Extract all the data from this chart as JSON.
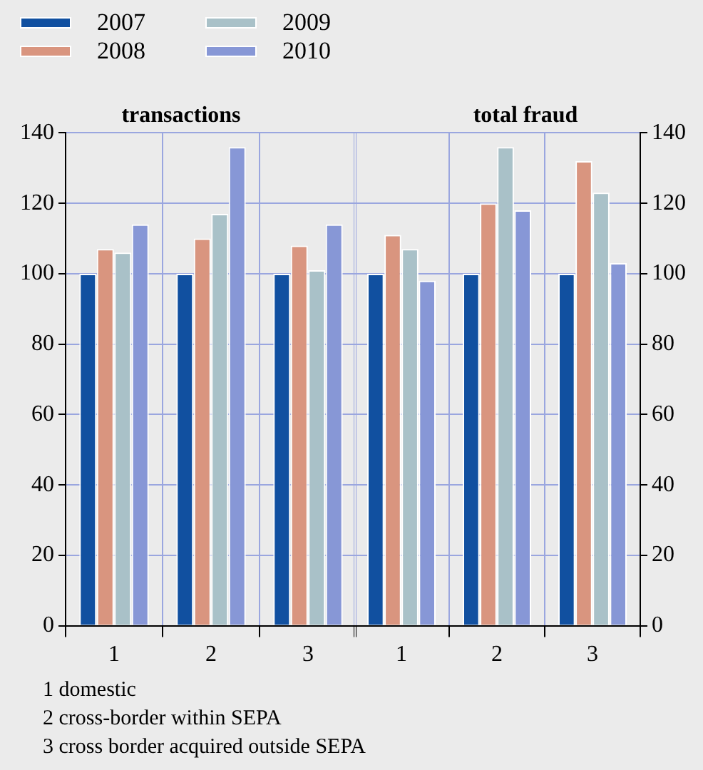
{
  "chart_data": [
    {
      "type": "bar",
      "title": "transactions",
      "categories": [
        "1",
        "2",
        "3"
      ],
      "series": [
        {
          "name": "2007",
          "color": "#1150a0",
          "values": [
            100,
            100,
            100
          ]
        },
        {
          "name": "2008",
          "color": "#d9957f",
          "values": [
            107,
            110,
            108
          ]
        },
        {
          "name": "2009",
          "color": "#a9c1c8",
          "values": [
            106,
            117,
            101
          ]
        },
        {
          "name": "2010",
          "color": "#8797d6",
          "values": [
            114,
            136,
            114
          ]
        }
      ],
      "ylim": [
        0,
        140
      ],
      "yticks": [
        0,
        20,
        40,
        60,
        80,
        100,
        120,
        140
      ],
      "grid": true,
      "legend": "top left"
    },
    {
      "type": "bar",
      "title": "total fraud",
      "categories": [
        "1",
        "2",
        "3"
      ],
      "series": [
        {
          "color": "#1150a0",
          "values": [
            100,
            100,
            100
          ]
        },
        {
          "color": "#d9957f",
          "values": [
            111,
            120,
            132
          ]
        },
        {
          "color": "#a9c1c8",
          "values": [
            107,
            136,
            123
          ]
        },
        {
          "color": "#8797d6",
          "values": [
            98,
            118,
            103
          ]
        }
      ],
      "ylim": [
        0,
        140
      ],
      "yticks": [
        0,
        20,
        40,
        60,
        80,
        100,
        120,
        140
      ],
      "grid": true,
      "annotations": [
        "1 domestic",
        "2 cross-border within SEPA",
        "3 cross border acquired outside SEPA"
      ]
    }
  ]
}
